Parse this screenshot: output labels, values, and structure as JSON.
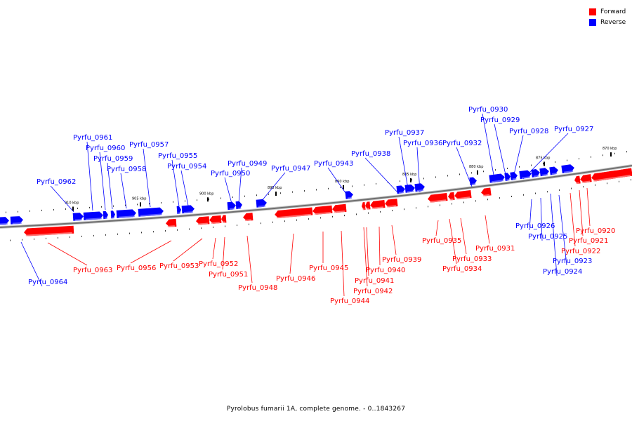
{
  "legend": {
    "forward": {
      "label": "Forward",
      "color": "#ff0000"
    },
    "reverse": {
      "label": "Reverse",
      "color": "#0000ff"
    }
  },
  "caption": "Pyrolobus fumarii 1A, complete genome. - 0..1843267",
  "ticks": [
    "910 kbp",
    "905 kbp",
    "900 kbp",
    "895 kbp",
    "890 kbp",
    "885 kbp",
    "880 kbp",
    "875 kbp",
    "870 kbp"
  ],
  "genes": [
    {
      "name": "Pyrfu_0964",
      "strand": "reverse"
    },
    {
      "name": "Pyrfu_0963",
      "strand": "forward"
    },
    {
      "name": "Pyrfu_0962",
      "strand": "reverse"
    },
    {
      "name": "Pyrfu_0961",
      "strand": "reverse"
    },
    {
      "name": "Pyrfu_0960",
      "strand": "reverse"
    },
    {
      "name": "Pyrfu_0959",
      "strand": "reverse"
    },
    {
      "name": "Pyrfu_0958",
      "strand": "reverse"
    },
    {
      "name": "Pyrfu_0957",
      "strand": "reverse"
    },
    {
      "name": "Pyrfu_0956",
      "strand": "forward"
    },
    {
      "name": "Pyrfu_0955",
      "strand": "reverse"
    },
    {
      "name": "Pyrfu_0954",
      "strand": "reverse"
    },
    {
      "name": "Pyrfu_0953",
      "strand": "forward"
    },
    {
      "name": "Pyrfu_0952",
      "strand": "forward"
    },
    {
      "name": "Pyrfu_0951",
      "strand": "forward"
    },
    {
      "name": "Pyrfu_0950",
      "strand": "reverse"
    },
    {
      "name": "Pyrfu_0949",
      "strand": "reverse"
    },
    {
      "name": "Pyrfu_0948",
      "strand": "forward"
    },
    {
      "name": "Pyrfu_0947",
      "strand": "reverse"
    },
    {
      "name": "Pyrfu_0946",
      "strand": "forward"
    },
    {
      "name": "Pyrfu_0945",
      "strand": "forward"
    },
    {
      "name": "Pyrfu_0944",
      "strand": "forward"
    },
    {
      "name": "Pyrfu_0943",
      "strand": "reverse"
    },
    {
      "name": "Pyrfu_0942",
      "strand": "forward"
    },
    {
      "name": "Pyrfu_0941",
      "strand": "forward"
    },
    {
      "name": "Pyrfu_0940",
      "strand": "forward"
    },
    {
      "name": "Pyrfu_0939",
      "strand": "forward"
    },
    {
      "name": "Pyrfu_0938",
      "strand": "reverse"
    },
    {
      "name": "Pyrfu_0937",
      "strand": "reverse"
    },
    {
      "name": "Pyrfu_0936",
      "strand": "reverse"
    },
    {
      "name": "Pyrfu_0935",
      "strand": "forward"
    },
    {
      "name": "Pyrfu_0934",
      "strand": "forward"
    },
    {
      "name": "Pyrfu_0933",
      "strand": "forward"
    },
    {
      "name": "Pyrfu_0932",
      "strand": "reverse"
    },
    {
      "name": "Pyrfu_0931",
      "strand": "forward"
    },
    {
      "name": "Pyrfu_0930",
      "strand": "reverse"
    },
    {
      "name": "Pyrfu_0929",
      "strand": "reverse"
    },
    {
      "name": "Pyrfu_0928",
      "strand": "reverse"
    },
    {
      "name": "Pyrfu_0927",
      "strand": "reverse"
    },
    {
      "name": "Pyrfu_0926",
      "strand": "reverse"
    },
    {
      "name": "Pyrfu_0925",
      "strand": "reverse"
    },
    {
      "name": "Pyrfu_0924",
      "strand": "reverse"
    },
    {
      "name": "Pyrfu_0923",
      "strand": "reverse"
    },
    {
      "name": "Pyrfu_0922",
      "strand": "forward"
    },
    {
      "name": "Pyrfu_0921",
      "strand": "forward"
    },
    {
      "name": "Pyrfu_0920",
      "strand": "forward"
    }
  ]
}
